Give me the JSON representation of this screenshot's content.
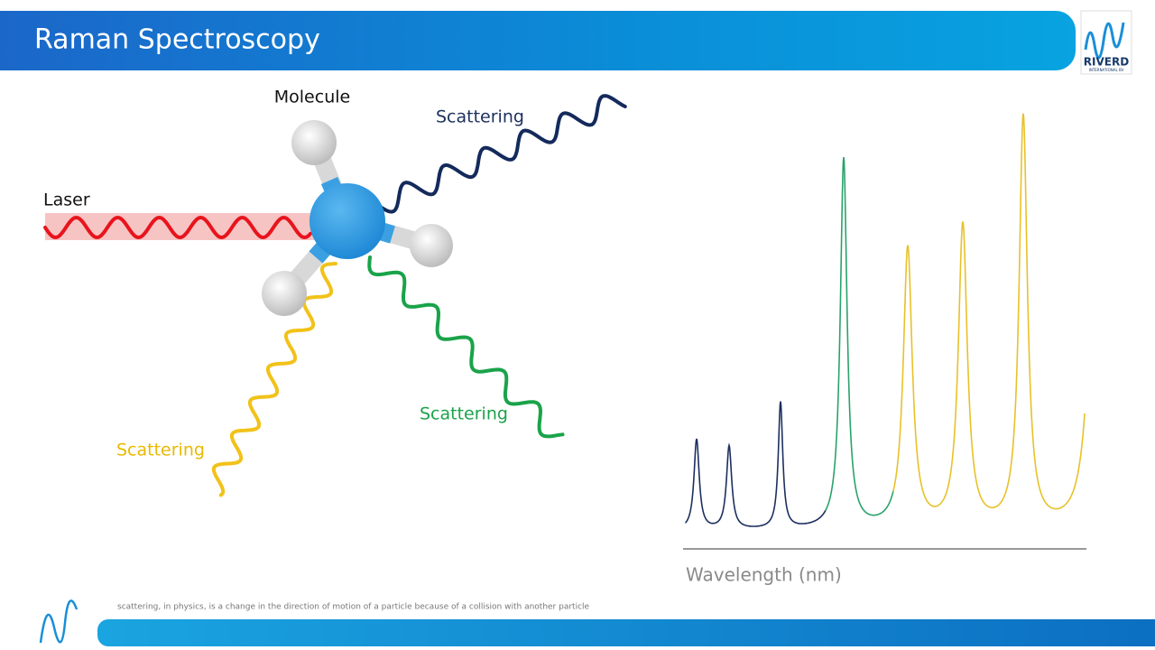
{
  "header": {
    "title": "Raman Spectroscopy",
    "logo": {
      "name": "RIVERD",
      "tagline": "INTERNATIONAL BV"
    }
  },
  "diagram": {
    "molecule_label": "Molecule",
    "laser_label": "Laser",
    "scattering_labels": [
      "Scattering",
      "Scattering",
      "Scattering"
    ]
  },
  "spectrum": {
    "axis_label": "Wavelength (nm)"
  },
  "footer": {
    "note": "scattering, in physics, is a change in the direction of motion of a particle because of a collision with another particle"
  }
}
